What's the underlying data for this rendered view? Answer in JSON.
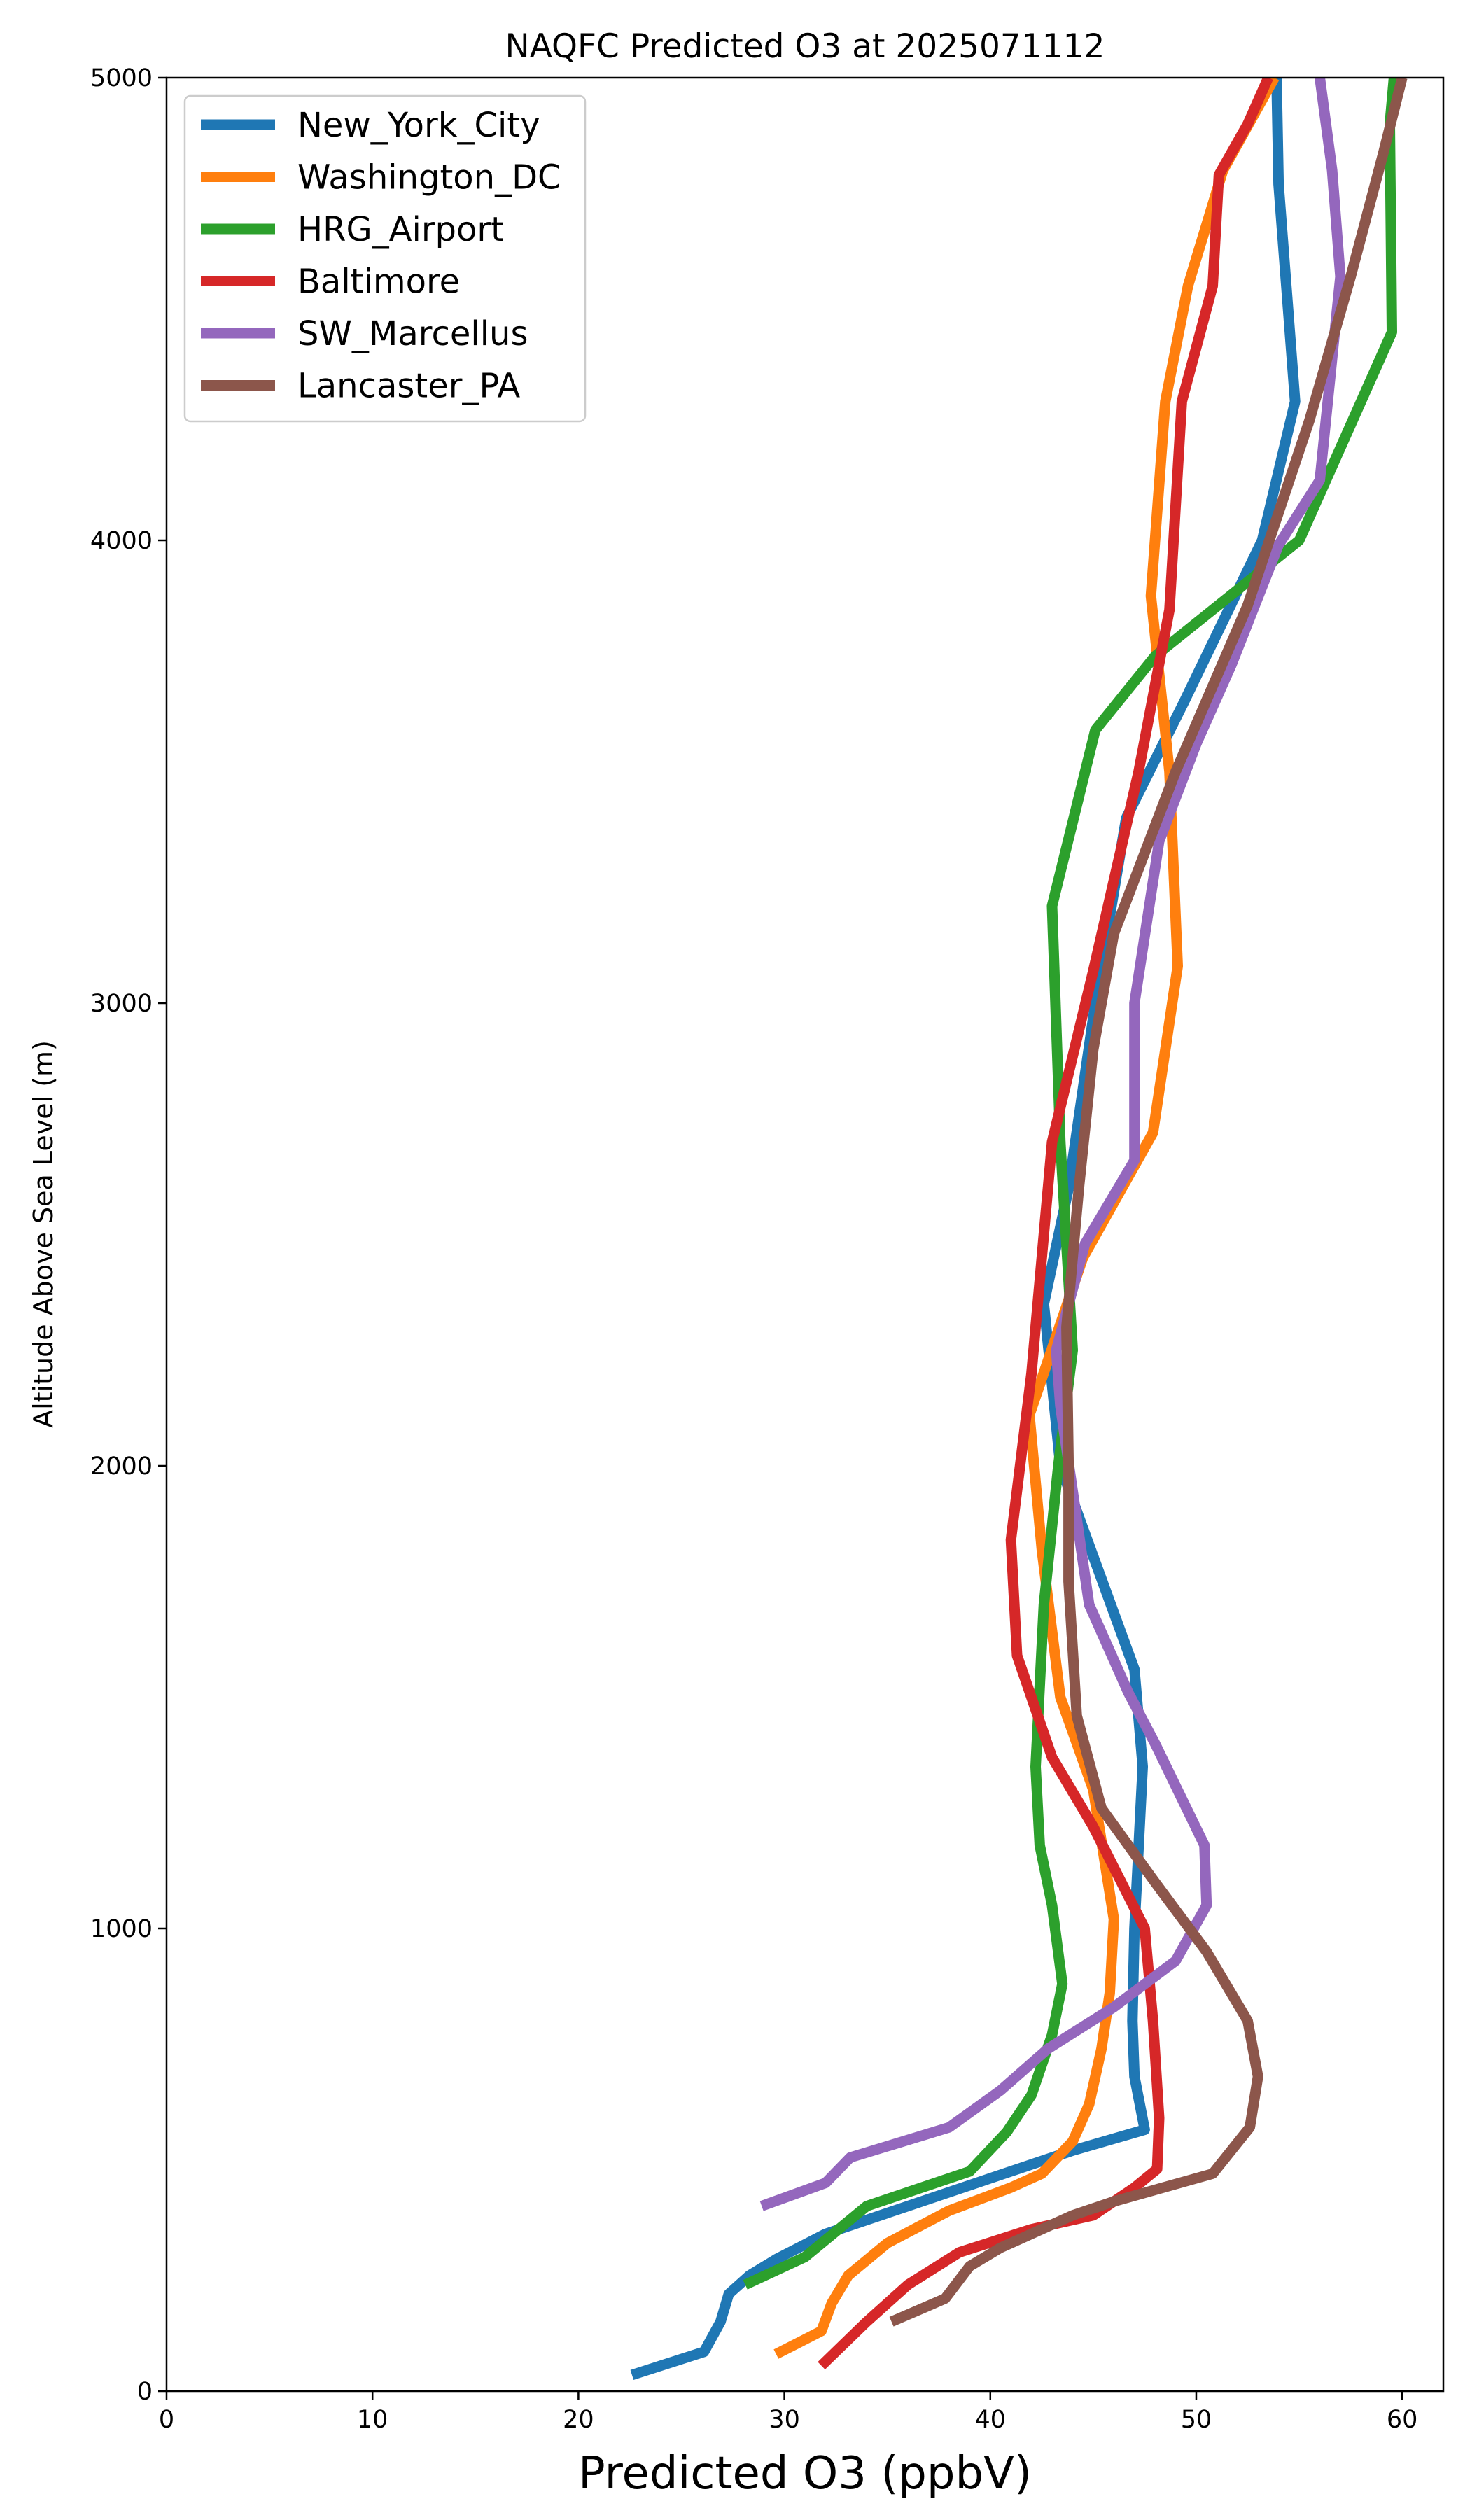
{
  "chart_data": {
    "type": "line",
    "title": "NAQFC Predicted O3 at 2025071112",
    "xlabel": "Predicted O3 (ppbV)",
    "ylabel": "Altitude Above Sea Level (m)",
    "xlim": [
      0,
      62
    ],
    "ylim": [
      0,
      5000
    ],
    "xticks": [
      0,
      10,
      20,
      30,
      40,
      50,
      60
    ],
    "yticks": [
      0,
      1000,
      2000,
      3000,
      4000,
      5000
    ],
    "grid": false,
    "legend_position": "top-left",
    "series": [
      {
        "name": "New_York_City",
        "color": "#1f77b4",
        "points": [
          [
            22.6,
            35
          ],
          [
            26.1,
            85
          ],
          [
            26.9,
            150
          ],
          [
            27.3,
            210
          ],
          [
            28.3,
            250
          ],
          [
            29.6,
            285
          ],
          [
            32.0,
            340
          ],
          [
            36.0,
            400
          ],
          [
            40.0,
            460
          ],
          [
            44.0,
            520
          ],
          [
            47.5,
            565
          ],
          [
            47.0,
            680
          ],
          [
            46.9,
            800
          ],
          [
            47.0,
            1000
          ],
          [
            47.4,
            1350
          ],
          [
            47.0,
            1560
          ],
          [
            43.4,
            2000
          ],
          [
            42.6,
            2350
          ],
          [
            43.8,
            2600
          ],
          [
            45.1,
            3000
          ],
          [
            46.6,
            3400
          ],
          [
            49.4,
            3650
          ],
          [
            53.2,
            4000
          ],
          [
            54.8,
            4300
          ],
          [
            54.0,
            4770
          ],
          [
            53.9,
            5000
          ]
        ]
      },
      {
        "name": "Washington_DC",
        "color": "#ff7f0e",
        "points": [
          [
            29.6,
            80
          ],
          [
            31.8,
            130
          ],
          [
            32.3,
            190
          ],
          [
            33.1,
            250
          ],
          [
            35.0,
            320
          ],
          [
            38.0,
            390
          ],
          [
            41.0,
            440
          ],
          [
            42.5,
            470
          ],
          [
            44.0,
            540
          ],
          [
            44.8,
            620
          ],
          [
            45.4,
            740
          ],
          [
            45.8,
            860
          ],
          [
            46.0,
            1020
          ],
          [
            45.0,
            1300
          ],
          [
            43.4,
            1500
          ],
          [
            42.5,
            1820
          ],
          [
            41.9,
            2110
          ],
          [
            44.5,
            2450
          ],
          [
            47.9,
            2720
          ],
          [
            49.1,
            3080
          ],
          [
            48.7,
            3500
          ],
          [
            47.8,
            3880
          ],
          [
            48.5,
            4300
          ],
          [
            49.6,
            4550
          ],
          [
            51.3,
            4800
          ],
          [
            53.8,
            5000
          ]
        ]
      },
      {
        "name": "HRG_Airport",
        "color": "#2ca02c",
        "points": [
          [
            28.1,
            230
          ],
          [
            31.0,
            290
          ],
          [
            34.0,
            400
          ],
          [
            39.0,
            475
          ],
          [
            40.8,
            560
          ],
          [
            42.0,
            640
          ],
          [
            43.0,
            770
          ],
          [
            43.5,
            880
          ],
          [
            43.0,
            1050
          ],
          [
            42.4,
            1180
          ],
          [
            42.2,
            1350
          ],
          [
            42.6,
            1700
          ],
          [
            43.3,
            2000
          ],
          [
            44.0,
            2250
          ],
          [
            43.4,
            2700
          ],
          [
            43.0,
            3210
          ],
          [
            45.1,
            3590
          ],
          [
            48.0,
            3750
          ],
          [
            55.0,
            4000
          ],
          [
            59.5,
            4450
          ],
          [
            59.4,
            4900
          ],
          [
            59.6,
            5000
          ]
        ]
      },
      {
        "name": "Baltimore",
        "color": "#d62728",
        "points": [
          [
            31.8,
            55
          ],
          [
            34.0,
            150
          ],
          [
            36.0,
            230
          ],
          [
            38.5,
            300
          ],
          [
            42.0,
            350
          ],
          [
            45.0,
            380
          ],
          [
            47.0,
            440
          ],
          [
            48.1,
            480
          ],
          [
            48.2,
            590
          ],
          [
            47.9,
            800
          ],
          [
            47.5,
            1000
          ],
          [
            45.0,
            1220
          ],
          [
            43.0,
            1370
          ],
          [
            41.3,
            1590
          ],
          [
            41.0,
            1840
          ],
          [
            42.0,
            2200
          ],
          [
            43.0,
            2700
          ],
          [
            45.0,
            3070
          ],
          [
            47.2,
            3500
          ],
          [
            48.7,
            3850
          ],
          [
            49.3,
            4300
          ],
          [
            50.8,
            4550
          ],
          [
            51.1,
            4790
          ],
          [
            52.5,
            4900
          ],
          [
            53.5,
            5000
          ]
        ]
      },
      {
        "name": "SW_Marcellus",
        "color": "#9467bd",
        "points": [
          [
            28.9,
            400
          ],
          [
            32.0,
            450
          ],
          [
            33.2,
            505
          ],
          [
            38.0,
            570
          ],
          [
            40.5,
            650
          ],
          [
            42.8,
            740
          ],
          [
            46.0,
            830
          ],
          [
            49.0,
            930
          ],
          [
            50.5,
            1050
          ],
          [
            50.4,
            1180
          ],
          [
            48.0,
            1400
          ],
          [
            46.7,
            1510
          ],
          [
            44.8,
            1700
          ],
          [
            43.4,
            2130
          ],
          [
            43.2,
            2250
          ],
          [
            44.6,
            2480
          ],
          [
            47.0,
            2660
          ],
          [
            47.0,
            3000
          ],
          [
            48.2,
            3350
          ],
          [
            50.0,
            3560
          ],
          [
            51.7,
            3730
          ],
          [
            54.0,
            3990
          ],
          [
            56.0,
            4130
          ],
          [
            57.0,
            4570
          ],
          [
            56.6,
            4800
          ],
          [
            56.0,
            5000
          ]
        ]
      },
      {
        "name": "Lancaster_PA",
        "color": "#8c564b",
        "points": [
          [
            35.2,
            150
          ],
          [
            37.8,
            200
          ],
          [
            39.0,
            270
          ],
          [
            40.5,
            310
          ],
          [
            44.0,
            380
          ],
          [
            46.0,
            410
          ],
          [
            50.8,
            470
          ],
          [
            52.6,
            570
          ],
          [
            53.0,
            680
          ],
          [
            52.5,
            800
          ],
          [
            50.5,
            950
          ],
          [
            48.0,
            1100
          ],
          [
            45.4,
            1260
          ],
          [
            44.2,
            1460
          ],
          [
            43.8,
            1750
          ],
          [
            43.8,
            2000
          ],
          [
            43.7,
            2300
          ],
          [
            44.3,
            2600
          ],
          [
            45.0,
            2900
          ],
          [
            46.0,
            3150
          ],
          [
            49.0,
            3500
          ],
          [
            52.5,
            3860
          ],
          [
            55.5,
            4260
          ],
          [
            57.5,
            4570
          ],
          [
            59.1,
            4840
          ],
          [
            60.0,
            5000
          ]
        ]
      }
    ]
  }
}
